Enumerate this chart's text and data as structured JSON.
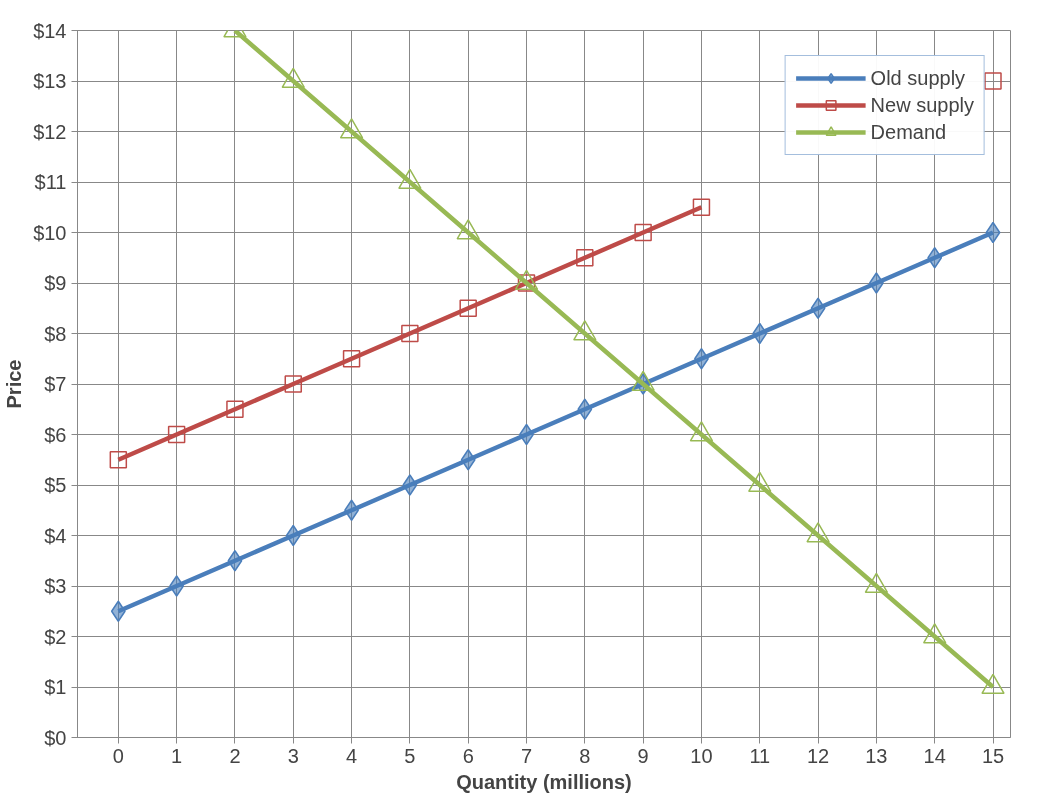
{
  "chart_data": {
    "type": "line",
    "xlabel": "Quantity (millions)",
    "ylabel": "Price",
    "xlim": [
      -0.7,
      15.3
    ],
    "xticks": [
      0,
      1,
      2,
      3,
      4,
      5,
      6,
      7,
      8,
      9,
      10,
      11,
      12,
      13,
      14,
      15
    ],
    "ylim": [
      0,
      14
    ],
    "yticks": [
      {
        "value": 0,
        "label": "$0"
      },
      {
        "value": 1,
        "label": "$1"
      },
      {
        "value": 2,
        "label": "$2"
      },
      {
        "value": 3,
        "label": "$3"
      },
      {
        "value": 4,
        "label": "$4"
      },
      {
        "value": 5,
        "label": "$5"
      },
      {
        "value": 6,
        "label": "$6"
      },
      {
        "value": 7,
        "label": "$7"
      },
      {
        "value": 8,
        "label": "$8"
      },
      {
        "value": 9,
        "label": "$9"
      },
      {
        "value": 10,
        "label": "$10"
      },
      {
        "value": 11,
        "label": "$11"
      },
      {
        "value": 12,
        "label": "$12"
      },
      {
        "value": 13,
        "label": "$13"
      },
      {
        "value": 14,
        "label": "$14"
      }
    ],
    "grid": true,
    "legend": "top right",
    "line_style": "solid",
    "series": [
      {
        "name": "Old supply",
        "color": "#4a7ebb",
        "marker": "diamond",
        "x": [
          0,
          1,
          2,
          3,
          4,
          5,
          6,
          7,
          8,
          9,
          10,
          11,
          12,
          13,
          14,
          15
        ],
        "values": [
          2.5,
          3,
          3.5,
          4,
          4.5,
          5,
          5.5,
          6,
          6.5,
          7,
          7.5,
          8,
          8.5,
          9,
          9.5,
          10
        ]
      },
      {
        "name": "New supply",
        "color": "#be4b48",
        "marker": "square",
        "x": [
          0,
          1,
          2,
          3,
          4,
          5,
          6,
          7,
          8,
          9,
          10,
          11,
          12,
          13,
          14,
          15
        ],
        "values": [
          5.5,
          6,
          6.5,
          7,
          7.5,
          8,
          8.5,
          9,
          9.5,
          10,
          10.5,
          null,
          null,
          null,
          null,
          13
        ]
      },
      {
        "name": "Demand",
        "color": "#98b954",
        "marker": "triangle",
        "x": [
          2,
          3,
          4,
          5,
          6,
          7,
          8,
          9,
          10,
          11,
          12,
          13,
          14,
          15
        ],
        "values": [
          14,
          13,
          12,
          11,
          10,
          9,
          8,
          7,
          6,
          5,
          4,
          3,
          2,
          1
        ]
      }
    ]
  }
}
